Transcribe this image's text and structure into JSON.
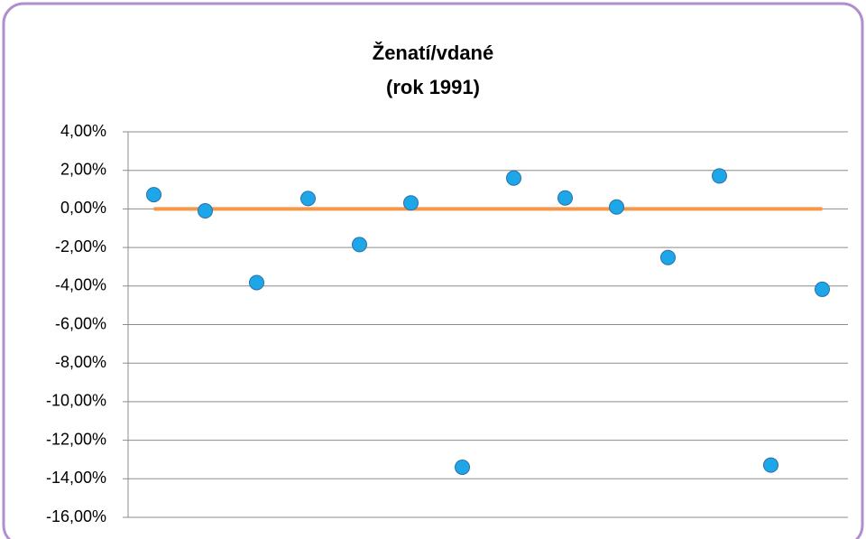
{
  "chart_data": {
    "type": "scatter",
    "title": [
      "Ženatí/vdané",
      "(rok 1991)"
    ],
    "categories": [
      null,
      null,
      null,
      null,
      null,
      null,
      null,
      null,
      null,
      null,
      null,
      null,
      null,
      null
    ],
    "series": [
      {
        "color": "#1ea7e8",
        "values": [
          0.74,
          -0.1,
          -3.82,
          0.54,
          -1.85,
          0.31,
          -13.4,
          1.6,
          0.57,
          0.1,
          -2.52,
          1.71,
          -13.29,
          -4.17
        ],
        "value_labels": [
          "0,74%",
          "-0,10%",
          "-3,82%",
          "0,54%",
          "-1,85%",
          "0,31%",
          "-13,40%",
          "1,60%",
          "0,57%",
          "0,10%",
          "-2,52%",
          "1,71%",
          "-13,29%",
          "-4,17%"
        ]
      },
      {
        "color": "#f79646",
        "values": [
          0,
          0,
          0,
          0,
          0,
          0,
          0,
          0,
          0,
          0,
          0,
          0,
          0,
          0
        ]
      }
    ],
    "ylim": [
      -16,
      4
    ],
    "yticks": [
      {
        "value": 4,
        "label": "4,00%"
      },
      {
        "value": 2,
        "label": "2,00%"
      },
      {
        "value": 0,
        "label": "0,00%"
      },
      {
        "value": -2,
        "label": "-2,00%"
      },
      {
        "value": -4,
        "label": "-4,00%"
      },
      {
        "value": -6,
        "label": "-6,00%"
      },
      {
        "value": -8,
        "label": "-8,00%"
      },
      {
        "value": -10,
        "label": "-10,00%"
      },
      {
        "value": -12,
        "label": "-12,00%"
      },
      {
        "value": -14,
        "label": "-14,00%"
      },
      {
        "value": -16,
        "label": "-16,00%"
      }
    ],
    "grid": true
  }
}
